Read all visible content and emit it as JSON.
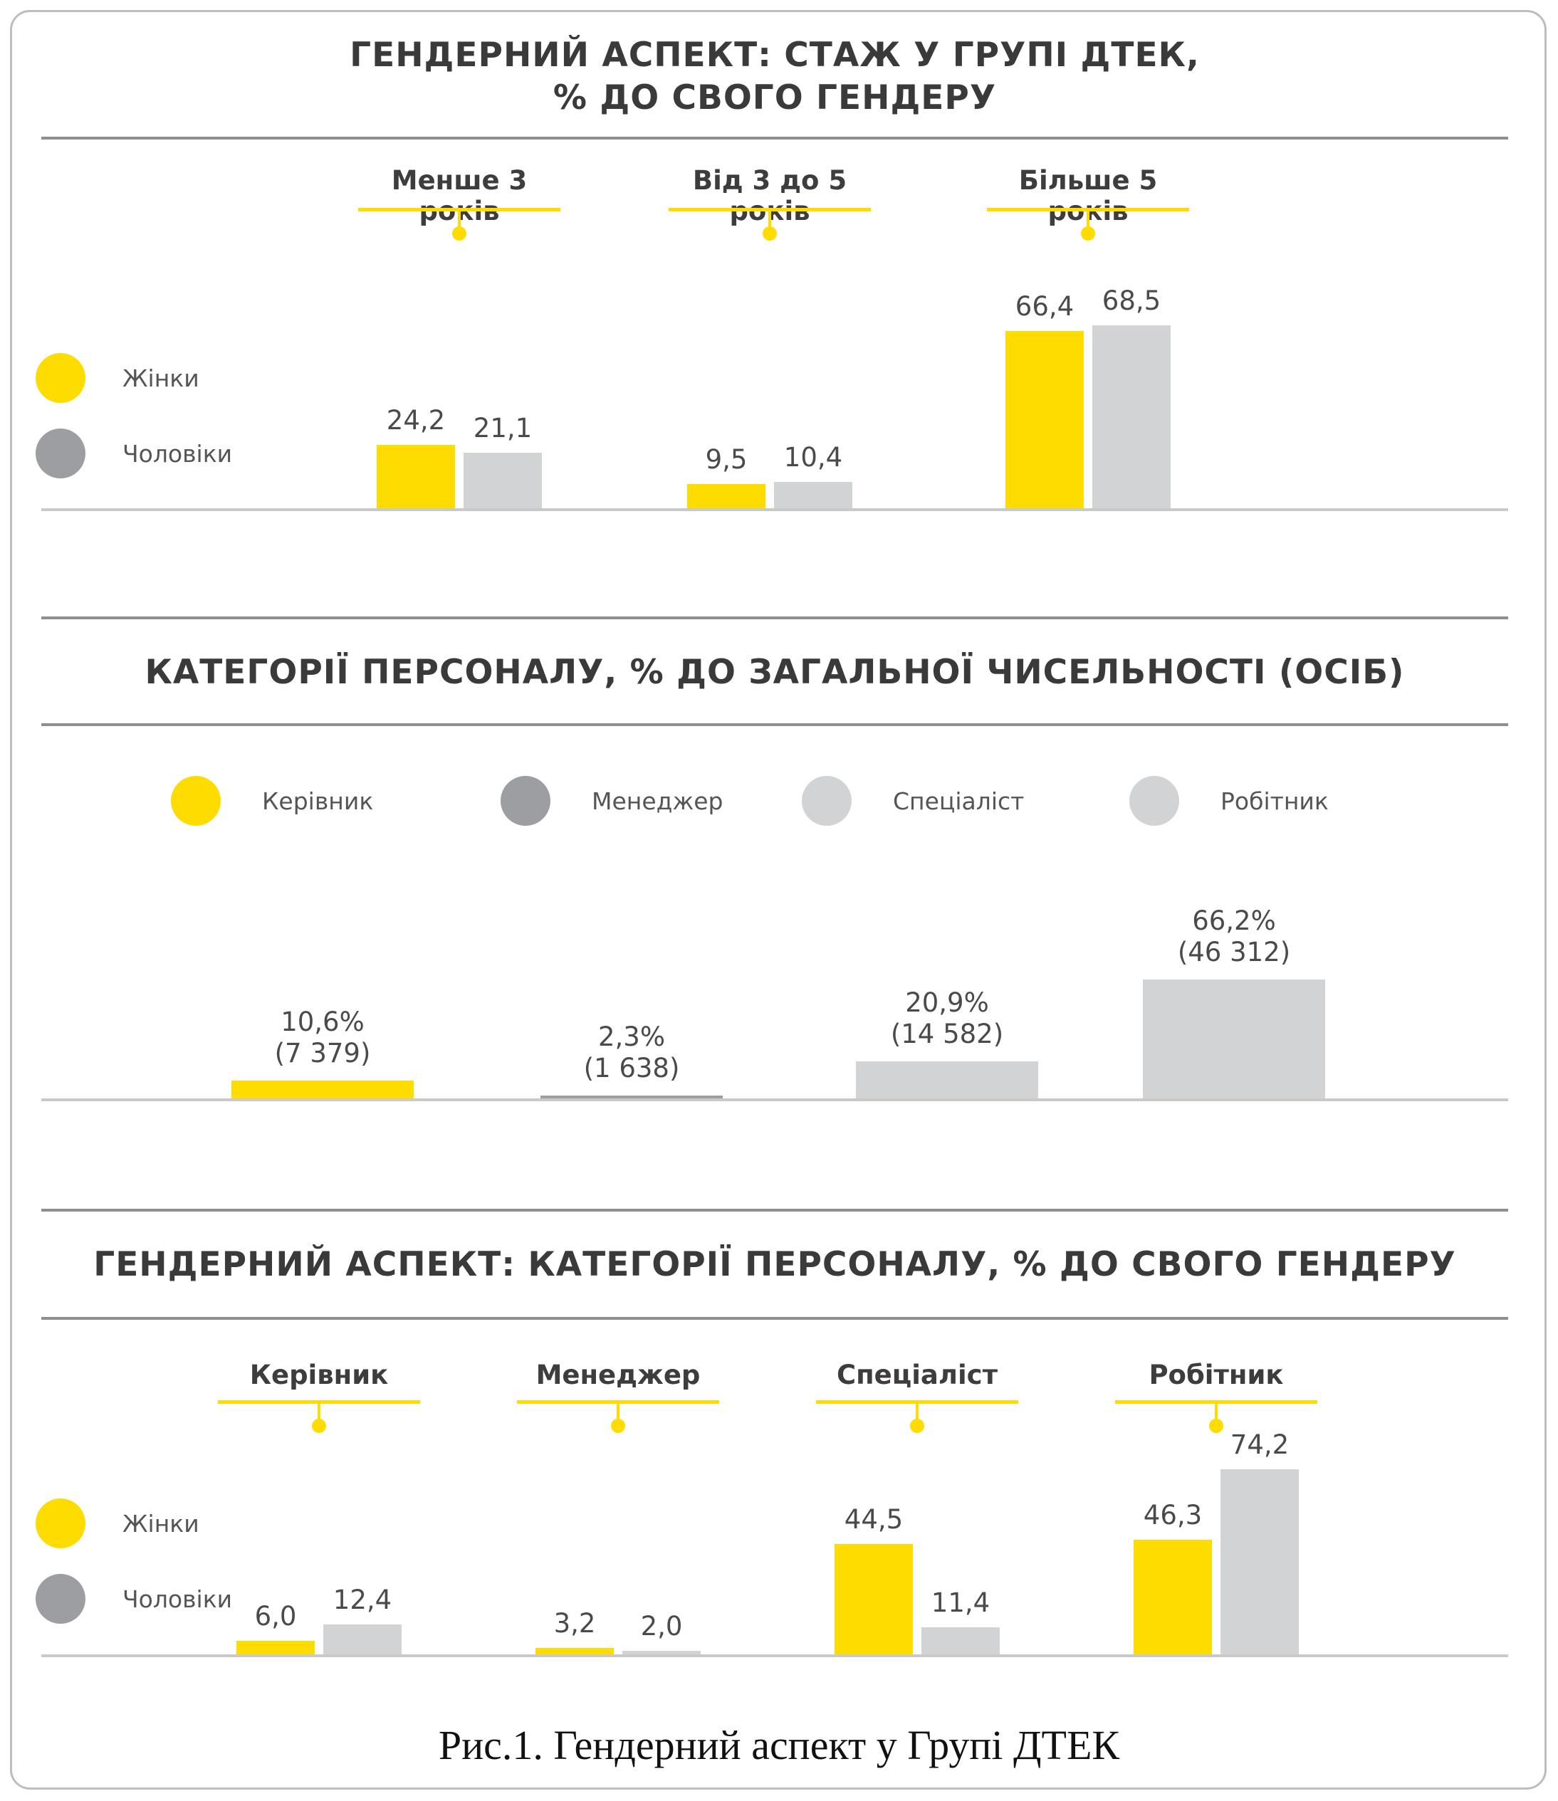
{
  "colors": {
    "yellow": "#ffdc00",
    "light_gray": "#d2d3d5",
    "dark_gray": "#9d9ea1",
    "text": "#3a3a3a"
  },
  "caption": "Рис.1. Гендерний аспект у Групі ДТЕК",
  "chart_data": [
    {
      "type": "bar",
      "title": "ГЕНДЕРНИЙ АСПЕКТ: СТАЖ У ГРУПІ ДТЕК,\n% ДО СВОГО ГЕНДЕРУ",
      "categories": [
        "Менше 3 років",
        "Від 3 до 5 років",
        "Більше 5 років"
      ],
      "series": [
        {
          "name": "Жінки",
          "color": "#ffdc00",
          "values": [
            24.2,
            9.5,
            66.4
          ],
          "labels": [
            "24,2",
            "9,5",
            "66,4"
          ]
        },
        {
          "name": "Чоловіки",
          "color": "#d2d3d5",
          "values": [
            21.1,
            10.4,
            68.5
          ],
          "labels": [
            "21,1",
            "10,4",
            "68,5"
          ]
        }
      ],
      "legend": [
        "Жінки",
        "Чоловіки"
      ],
      "legend_colors": [
        "#ffdc00",
        "#9d9ea1"
      ],
      "ylim": [
        0,
        100
      ],
      "grid": false,
      "legend_position": "left"
    },
    {
      "type": "bar",
      "title": "КАТЕГОРІЇ ПЕРСОНАЛУ, % ДО ЗАГАЛЬНОЇ ЧИСЕЛЬНОСТІ (ОСІБ)",
      "categories": [
        "Керівник",
        "Менеджер",
        "Спеціаліст",
        "Робітник"
      ],
      "values": [
        10.6,
        2.3,
        20.9,
        66.2
      ],
      "labels_pct": [
        "10,6%",
        "2,3%",
        "20,9%",
        "66,2%"
      ],
      "labels_count": [
        "(7 379)",
        "(1 638)",
        "(14 582)",
        "(46 312)"
      ],
      "colors": [
        "#ffdc00",
        "#9d9ea1",
        "#d2d3d5",
        "#d2d3d5"
      ],
      "ylim": [
        0,
        100
      ],
      "grid": false,
      "legend_position": "top"
    },
    {
      "type": "bar",
      "title": "ГЕНДЕРНИЙ АСПЕКТ: КАТЕГОРІЇ ПЕРСОНАЛУ, % ДО СВОГО ГЕНДЕРУ",
      "categories": [
        "Керівник",
        "Менеджер",
        "Спеціаліст",
        "Робітник"
      ],
      "series": [
        {
          "name": "Жінки",
          "color": "#ffdc00",
          "values": [
            6.0,
            3.2,
            44.5,
            46.3
          ],
          "labels": [
            "6,0",
            "3,2",
            "44,5",
            "46,3"
          ]
        },
        {
          "name": "Чоловіки",
          "color": "#d2d3d5",
          "values": [
            12.4,
            2.0,
            11.4,
            74.2
          ],
          "labels": [
            "12,4",
            "2,0",
            "11,4",
            "74,2"
          ]
        }
      ],
      "legend": [
        "Жінки",
        "Чоловіки"
      ],
      "legend_colors": [
        "#ffdc00",
        "#9d9ea1"
      ],
      "ylim": [
        0,
        100
      ],
      "grid": false,
      "legend_position": "left"
    }
  ]
}
